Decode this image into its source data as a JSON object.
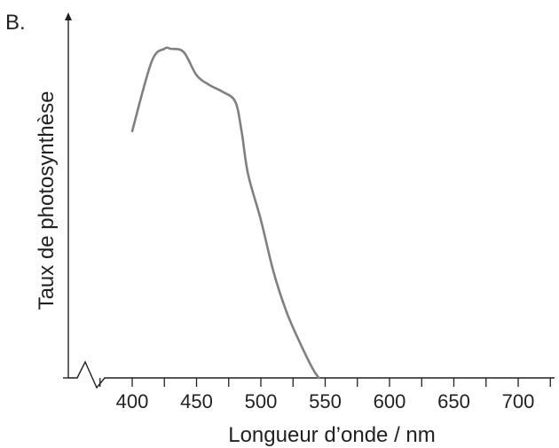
{
  "panel_label": "B.",
  "chart_data": {
    "type": "line",
    "title": "",
    "xlabel": "Longueur d’onde / nm",
    "ylabel": "Taux de photosynthèse",
    "x_ticks": [
      400,
      450,
      500,
      550,
      600,
      650,
      700
    ],
    "xlim": [
      350,
      730
    ],
    "ylim": [
      0,
      100
    ],
    "y_tick_labels": false,
    "x_axis_break": true,
    "grid": false,
    "legend": "none",
    "series": [
      {
        "color": "#808080",
        "x": [
          400,
          415,
          425,
          430,
          440,
          450,
          460,
          470,
          480,
          485,
          490,
          500,
          510,
          520,
          530,
          540,
          545
        ],
        "y": [
          75,
          96,
          100,
          100,
          99,
          92,
          89,
          87,
          84,
          75,
          62,
          48,
          32,
          20,
          11,
          3,
          0
        ]
      }
    ]
  }
}
